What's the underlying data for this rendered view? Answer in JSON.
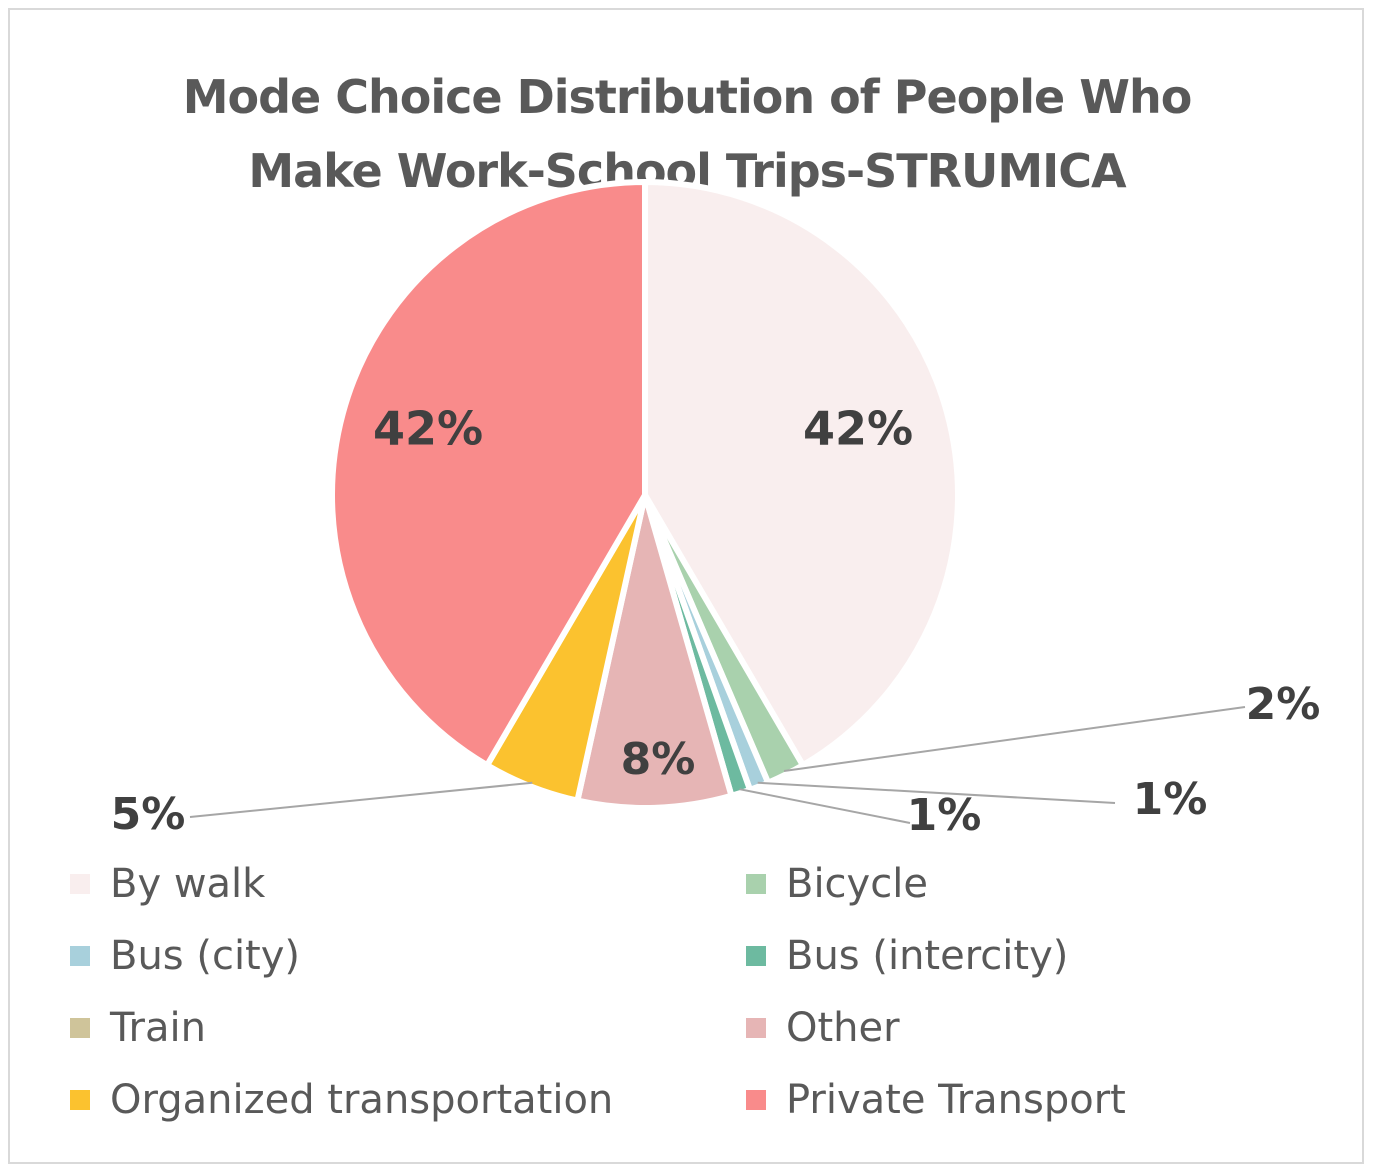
{
  "chart_data": {
    "type": "pie",
    "title_lines": [
      "Mode Choice Distribution of People Who",
      "Make Work-School Trips-STRUMICA"
    ],
    "categories": [
      "By walk",
      "Bicycle",
      "Bus (city)",
      "Bus (intercity)",
      "Train",
      "Other",
      "Organized transportation",
      "Private Transport"
    ],
    "values": [
      42,
      2,
      1,
      1,
      0,
      8,
      5,
      42
    ],
    "labels": [
      "42%",
      "2%",
      "1%",
      "1%",
      "",
      "8%",
      "5%",
      "42%"
    ],
    "colors": [
      "#f9eeee",
      "#a9d1ad",
      "#a8d0dc",
      "#6dbaa0",
      "#cfc49a",
      "#e6b5b5",
      "#fbc22f",
      "#f98b8b"
    ],
    "legend_position": "bottom"
  }
}
